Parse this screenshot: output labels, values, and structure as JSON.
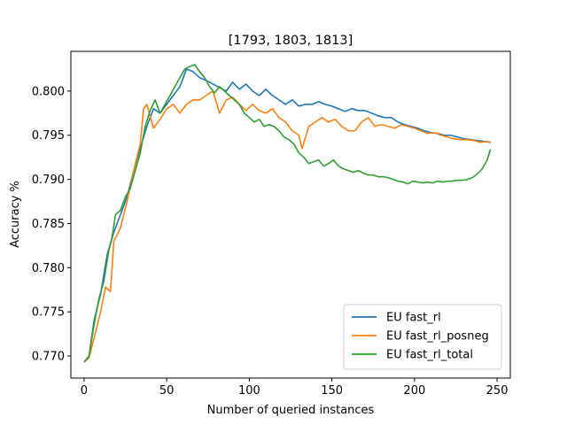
{
  "chart_data": {
    "type": "line",
    "title": "[1793, 1803, 1813]",
    "xlabel": "Number of queried instances",
    "ylabel": "Accuracy %",
    "xlim": [
      -8,
      258
    ],
    "ylim": [
      0.7675,
      0.8045
    ],
    "xticks": [
      0,
      50,
      100,
      150,
      200,
      250
    ],
    "yticks": [
      0.77,
      0.775,
      0.78,
      0.785,
      0.79,
      0.795,
      0.8
    ],
    "xtick_labels": [
      "0",
      "50",
      "100",
      "150",
      "200",
      "250"
    ],
    "ytick_labels": [
      "0.770",
      "0.775",
      "0.780",
      "0.785",
      "0.790",
      "0.795",
      "0.800"
    ],
    "legend_position": "lower-right",
    "grid": false,
    "series": [
      {
        "name": "EU fast_rl",
        "color": "#1f77b4",
        "points": [
          [
            0,
            0.7693
          ],
          [
            3,
            0.77
          ],
          [
            6,
            0.774
          ],
          [
            10,
            0.777
          ],
          [
            14,
            0.7815
          ],
          [
            18,
            0.784
          ],
          [
            22,
            0.786
          ],
          [
            26,
            0.788
          ],
          [
            30,
            0.791
          ],
          [
            34,
            0.7935
          ],
          [
            38,
            0.796
          ],
          [
            42,
            0.798
          ],
          [
            46,
            0.7975
          ],
          [
            50,
            0.7985
          ],
          [
            54,
            0.7995
          ],
          [
            58,
            0.8005
          ],
          [
            62,
            0.8025
          ],
          [
            66,
            0.8022
          ],
          [
            70,
            0.8015
          ],
          [
            74,
            0.8012
          ],
          [
            78,
            0.8008
          ],
          [
            82,
            0.8004
          ],
          [
            86,
            0.8
          ],
          [
            90,
            0.801
          ],
          [
            94,
            0.8002
          ],
          [
            98,
            0.8008
          ],
          [
            102,
            0.8
          ],
          [
            106,
            0.7995
          ],
          [
            110,
            0.8002
          ],
          [
            114,
            0.7995
          ],
          [
            118,
            0.799
          ],
          [
            122,
            0.7985
          ],
          [
            126,
            0.799
          ],
          [
            130,
            0.7983
          ],
          [
            134,
            0.7985
          ],
          [
            138,
            0.7985
          ],
          [
            142,
            0.7988
          ],
          [
            146,
            0.7985
          ],
          [
            150,
            0.7983
          ],
          [
            154,
            0.798
          ],
          [
            158,
            0.7977
          ],
          [
            162,
            0.798
          ],
          [
            166,
            0.7978
          ],
          [
            170,
            0.7978
          ],
          [
            174,
            0.7975
          ],
          [
            178,
            0.7972
          ],
          [
            182,
            0.797
          ],
          [
            186,
            0.797
          ],
          [
            190,
            0.7965
          ],
          [
            194,
            0.7962
          ],
          [
            198,
            0.796
          ],
          [
            202,
            0.7958
          ],
          [
            206,
            0.7955
          ],
          [
            210,
            0.7953
          ],
          [
            214,
            0.7952
          ],
          [
            218,
            0.795
          ],
          [
            222,
            0.795
          ],
          [
            226,
            0.7948
          ],
          [
            230,
            0.7946
          ],
          [
            234,
            0.7945
          ],
          [
            238,
            0.7944
          ],
          [
            242,
            0.7943
          ],
          [
            246,
            0.7942
          ]
        ]
      },
      {
        "name": "EU fast_rl_posneg",
        "color": "#ff7f0e",
        "points": [
          [
            0,
            0.7693
          ],
          [
            3,
            0.7698
          ],
          [
            6,
            0.772
          ],
          [
            10,
            0.775
          ],
          [
            13,
            0.7778
          ],
          [
            16,
            0.7773
          ],
          [
            18,
            0.783
          ],
          [
            22,
            0.7845
          ],
          [
            26,
            0.7875
          ],
          [
            30,
            0.791
          ],
          [
            34,
            0.794
          ],
          [
            36,
            0.798
          ],
          [
            38,
            0.7985
          ],
          [
            42,
            0.7958
          ],
          [
            46,
            0.7968
          ],
          [
            50,
            0.798
          ],
          [
            54,
            0.7985
          ],
          [
            58,
            0.7975
          ],
          [
            62,
            0.7985
          ],
          [
            66,
            0.799
          ],
          [
            70,
            0.799
          ],
          [
            74,
            0.7995
          ],
          [
            78,
            0.8
          ],
          [
            82,
            0.7975
          ],
          [
            86,
            0.799
          ],
          [
            90,
            0.7993
          ],
          [
            94,
            0.7985
          ],
          [
            98,
            0.7978
          ],
          [
            102,
            0.7985
          ],
          [
            106,
            0.7978
          ],
          [
            110,
            0.7975
          ],
          [
            114,
            0.798
          ],
          [
            118,
            0.797
          ],
          [
            122,
            0.7965
          ],
          [
            126,
            0.7955
          ],
          [
            130,
            0.795
          ],
          [
            132,
            0.7935
          ],
          [
            136,
            0.796
          ],
          [
            140,
            0.7965
          ],
          [
            144,
            0.797
          ],
          [
            148,
            0.7965
          ],
          [
            152,
            0.7968
          ],
          [
            156,
            0.796
          ],
          [
            160,
            0.7955
          ],
          [
            164,
            0.7955
          ],
          [
            168,
            0.7965
          ],
          [
            172,
            0.797
          ],
          [
            176,
            0.796
          ],
          [
            180,
            0.7962
          ],
          [
            184,
            0.796
          ],
          [
            188,
            0.7958
          ],
          [
            192,
            0.7962
          ],
          [
            196,
            0.796
          ],
          [
            200,
            0.7958
          ],
          [
            204,
            0.7955
          ],
          [
            208,
            0.7952
          ],
          [
            212,
            0.7953
          ],
          [
            216,
            0.795
          ],
          [
            220,
            0.7948
          ],
          [
            224,
            0.7946
          ],
          [
            228,
            0.7945
          ],
          [
            232,
            0.7945
          ],
          [
            236,
            0.7944
          ],
          [
            240,
            0.7942
          ],
          [
            244,
            0.7943
          ],
          [
            246,
            0.7941
          ]
        ]
      },
      {
        "name": "EU fast_rl_total",
        "color": "#2ca02c",
        "points": [
          [
            0,
            0.7693
          ],
          [
            3,
            0.77
          ],
          [
            6,
            0.7735
          ],
          [
            9,
            0.7765
          ],
          [
            12,
            0.7785
          ],
          [
            15,
            0.782
          ],
          [
            17,
            0.7835
          ],
          [
            19,
            0.786
          ],
          [
            22,
            0.7865
          ],
          [
            25,
            0.788
          ],
          [
            28,
            0.789
          ],
          [
            31,
            0.791
          ],
          [
            34,
            0.793
          ],
          [
            37,
            0.796
          ],
          [
            40,
            0.7978
          ],
          [
            43,
            0.799
          ],
          [
            46,
            0.7975
          ],
          [
            49,
            0.7985
          ],
          [
            52,
            0.7995
          ],
          [
            55,
            0.8005
          ],
          [
            58,
            0.8015
          ],
          [
            61,
            0.8025
          ],
          [
            64,
            0.8028
          ],
          [
            67,
            0.803
          ],
          [
            70,
            0.8022
          ],
          [
            73,
            0.8015
          ],
          [
            76,
            0.8005
          ],
          [
            79,
            0.7998
          ],
          [
            82,
            0.8005
          ],
          [
            85,
            0.8
          ],
          [
            88,
            0.7995
          ],
          [
            91,
            0.799
          ],
          [
            94,
            0.7985
          ],
          [
            97,
            0.7975
          ],
          [
            100,
            0.797
          ],
          [
            103,
            0.7965
          ],
          [
            106,
            0.7968
          ],
          [
            109,
            0.796
          ],
          [
            112,
            0.7962
          ],
          [
            115,
            0.796
          ],
          [
            118,
            0.7955
          ],
          [
            121,
            0.7948
          ],
          [
            124,
            0.7945
          ],
          [
            127,
            0.794
          ],
          [
            130,
            0.793
          ],
          [
            133,
            0.7925
          ],
          [
            136,
            0.7918
          ],
          [
            139,
            0.792
          ],
          [
            142,
            0.7922
          ],
          [
            145,
            0.7915
          ],
          [
            148,
            0.7918
          ],
          [
            151,
            0.7922
          ],
          [
            154,
            0.7915
          ],
          [
            157,
            0.7912
          ],
          [
            160,
            0.791
          ],
          [
            163,
            0.7908
          ],
          [
            166,
            0.791
          ],
          [
            169,
            0.7907
          ],
          [
            172,
            0.7905
          ],
          [
            175,
            0.7905
          ],
          [
            178,
            0.7903
          ],
          [
            181,
            0.7903
          ],
          [
            184,
            0.7902
          ],
          [
            187,
            0.79
          ],
          [
            190,
            0.7898
          ],
          [
            193,
            0.7897
          ],
          [
            196,
            0.7895
          ],
          [
            199,
            0.7898
          ],
          [
            202,
            0.7897
          ],
          [
            205,
            0.7896
          ],
          [
            208,
            0.7897
          ],
          [
            211,
            0.7896
          ],
          [
            214,
            0.7898
          ],
          [
            217,
            0.7897
          ],
          [
            220,
            0.7898
          ],
          [
            223,
            0.7898
          ],
          [
            226,
            0.7899
          ],
          [
            229,
            0.7899
          ],
          [
            232,
            0.79
          ],
          [
            235,
            0.7902
          ],
          [
            238,
            0.7906
          ],
          [
            241,
            0.7912
          ],
          [
            244,
            0.7922
          ],
          [
            246,
            0.7934
          ]
        ]
      }
    ]
  }
}
